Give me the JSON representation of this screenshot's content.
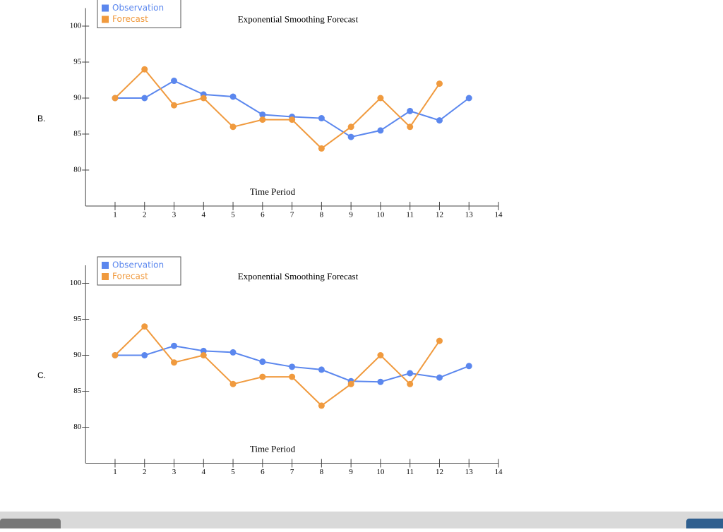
{
  "options": [
    "B.",
    "C."
  ],
  "chart_data": [
    {
      "type": "line",
      "title": "Exponential Smoothing Forecast",
      "x_label": "Time Period",
      "x": [
        1,
        2,
        3,
        4,
        5,
        6,
        7,
        8,
        9,
        10,
        11,
        12,
        13
      ],
      "series": [
        {
          "name": "Observation",
          "color": "#5b87ee",
          "values": [
            90,
            90,
            92.4,
            90.5,
            90.2,
            87.7,
            87.4,
            87.2,
            84.6,
            85.5,
            88.2,
            86.9,
            90
          ]
        },
        {
          "name": "Forecast",
          "color": "#f09a3e",
          "values": [
            90,
            94,
            89,
            90,
            86,
            87,
            87,
            83,
            86,
            90,
            86,
            92,
            null
          ]
        }
      ],
      "xlim": [
        0,
        14
      ],
      "xticks": [
        1,
        2,
        3,
        4,
        5,
        6,
        7,
        8,
        9,
        10,
        11,
        12,
        13,
        14
      ],
      "ylim": [
        75,
        102.5
      ],
      "yticks": [
        80,
        85,
        90,
        95,
        100
      ],
      "legend": "upper-left"
    },
    {
      "type": "line",
      "title": "Exponential Smoothing Forecast",
      "x_label": "Time Period",
      "x": [
        1,
        2,
        3,
        4,
        5,
        6,
        7,
        8,
        9,
        10,
        11,
        12,
        13
      ],
      "series": [
        {
          "name": "Observation",
          "color": "#5b87ee",
          "values": [
            90,
            90,
            91.3,
            90.6,
            90.4,
            89.1,
            88.4,
            88,
            86.4,
            86.3,
            87.5,
            86.9,
            88.5
          ]
        },
        {
          "name": "Forecast",
          "color": "#f09a3e",
          "values": [
            90,
            94,
            89,
            90,
            86,
            87,
            87,
            83,
            86,
            90,
            86,
            92,
            null
          ]
        }
      ],
      "xlim": [
        0,
        14
      ],
      "xticks": [
        1,
        2,
        3,
        4,
        5,
        6,
        7,
        8,
        9,
        10,
        11,
        12,
        13,
        14
      ],
      "ylim": [
        75,
        102.5
      ],
      "yticks": [
        80,
        85,
        90,
        95,
        100
      ],
      "legend": "upper-left"
    }
  ]
}
